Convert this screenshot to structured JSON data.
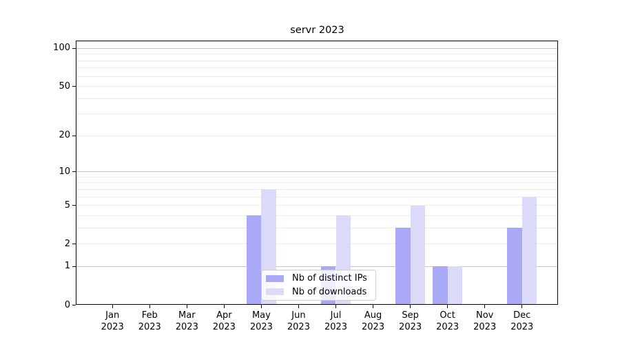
{
  "title": "servr 2023",
  "legend": {
    "items": [
      {
        "label": "Nb of distinct IPs",
        "color": "#a9a9f7"
      },
      {
        "label": "Nb of downloads",
        "color": "#dbdbf9"
      }
    ]
  },
  "axes": {
    "y_tick_labels": [
      "0",
      "1",
      "2",
      "5",
      "10",
      "20",
      "50",
      "100"
    ],
    "x_year_label": "2023"
  },
  "chart_data": {
    "type": "bar",
    "title": "servr 2023",
    "categories": [
      "Jan 2023",
      "Feb 2023",
      "Mar 2023",
      "Apr 2023",
      "May 2023",
      "Jun 2023",
      "Jul 2023",
      "Aug 2023",
      "Sep 2023",
      "Oct 2023",
      "Nov 2023",
      "Dec 2023"
    ],
    "months": [
      "Jan",
      "Feb",
      "Mar",
      "Apr",
      "May",
      "Jun",
      "Jul",
      "Aug",
      "Sep",
      "Oct",
      "Nov",
      "Dec"
    ],
    "year": "2023",
    "series": [
      {
        "name": "Nb of distinct IPs",
        "color": "#a9a9f7",
        "values": [
          0,
          0,
          0,
          0,
          4,
          0,
          1,
          0,
          3,
          1,
          0,
          3
        ]
      },
      {
        "name": "Nb of downloads",
        "color": "#dbdbf9",
        "values": [
          0,
          0,
          0,
          0,
          7,
          0,
          4,
          0,
          5,
          1,
          0,
          6
        ]
      }
    ],
    "xlabel": "",
    "ylabel": "",
    "yscale": "log1p",
    "ylim": [
      0,
      114
    ],
    "y_ticks": [
      0,
      1,
      2,
      5,
      10,
      20,
      50,
      100
    ],
    "grid_major": [
      1,
      10,
      100
    ],
    "grid_minor": [
      2,
      3,
      4,
      5,
      6,
      7,
      8,
      9,
      20,
      30,
      40,
      50,
      60,
      70,
      80,
      90
    ],
    "grid": "horizontal",
    "legend_position": "inside-bottom-center",
    "bar_group": "side-by-side"
  }
}
